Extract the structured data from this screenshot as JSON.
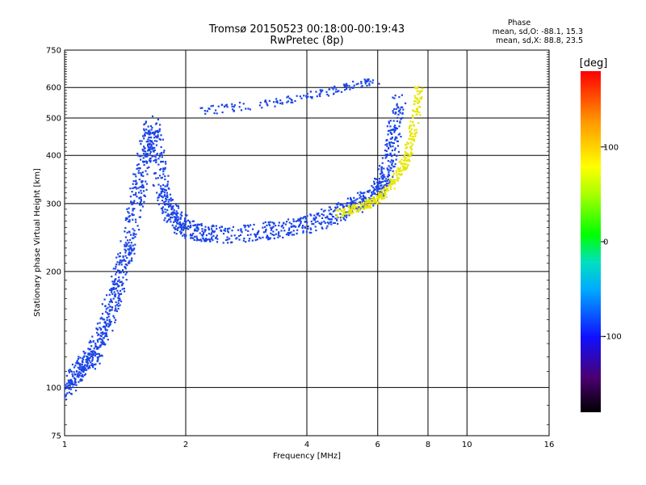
{
  "chart_data": {
    "type": "scatter",
    "title": "Tromsø 20150523 00:18:00-00:19:43",
    "subtitle": "RwPretec (8p)",
    "xlabel": "Frequency [MHz]",
    "ylabel": "Stationary phase Virtual Height [km]",
    "x_scale": "log",
    "y_scale": "log",
    "xlim": [
      1,
      16
    ],
    "ylim": [
      75,
      750
    ],
    "x_ticks": [
      1,
      2,
      4,
      6,
      8,
      10,
      16
    ],
    "y_ticks": [
      75,
      100,
      200,
      300,
      400,
      500,
      600,
      750
    ],
    "grid": true,
    "phase_box": {
      "heading": "Phase",
      "line1": "mean, sd,O: -88.1, 15.3",
      "line2": "mean, sd,X:  88.8, 23.5"
    },
    "colorbar": {
      "label": "[deg]",
      "range": [
        -180,
        180
      ],
      "ticks": [
        -100,
        0,
        100
      ],
      "colormap": "rainbow"
    },
    "colors": {
      "o_mode": "#1a44e8",
      "x_mode": "#e6e600",
      "grid": "#000000",
      "background": "#ffffff"
    },
    "o_trace": [
      {
        "x": 1.0,
        "y": 97
      },
      {
        "x": 1.05,
        "y": 105
      },
      {
        "x": 1.1,
        "y": 112
      },
      {
        "x": 1.15,
        "y": 118
      },
      {
        "x": 1.2,
        "y": 125
      },
      {
        "x": 1.25,
        "y": 140
      },
      {
        "x": 1.3,
        "y": 160
      },
      {
        "x": 1.35,
        "y": 180
      },
      {
        "x": 1.4,
        "y": 210
      },
      {
        "x": 1.45,
        "y": 240
      },
      {
        "x": 1.5,
        "y": 300
      },
      {
        "x": 1.55,
        "y": 350
      },
      {
        "x": 1.6,
        "y": 420
      },
      {
        "x": 1.65,
        "y": 480
      },
      {
        "x": 1.7,
        "y": 400
      },
      {
        "x": 1.75,
        "y": 320
      },
      {
        "x": 1.8,
        "y": 290
      },
      {
        "x": 1.9,
        "y": 270
      },
      {
        "x": 2.0,
        "y": 258
      },
      {
        "x": 2.2,
        "y": 252
      },
      {
        "x": 2.5,
        "y": 250
      },
      {
        "x": 3.0,
        "y": 252
      },
      {
        "x": 3.5,
        "y": 258
      },
      {
        "x": 4.0,
        "y": 265
      },
      {
        "x": 4.5,
        "y": 275
      },
      {
        "x": 5.0,
        "y": 290
      },
      {
        "x": 5.5,
        "y": 305
      },
      {
        "x": 6.0,
        "y": 320
      },
      {
        "x": 6.2,
        "y": 345
      },
      {
        "x": 6.4,
        "y": 390
      },
      {
        "x": 6.6,
        "y": 460
      },
      {
        "x": 6.8,
        "y": 560
      }
    ],
    "x_trace": [
      {
        "x": 4.8,
        "y": 282
      },
      {
        "x": 5.2,
        "y": 290
      },
      {
        "x": 5.6,
        "y": 298
      },
      {
        "x": 6.0,
        "y": 308
      },
      {
        "x": 6.4,
        "y": 330
      },
      {
        "x": 6.8,
        "y": 360
      },
      {
        "x": 7.1,
        "y": 400
      },
      {
        "x": 7.3,
        "y": 450
      },
      {
        "x": 7.5,
        "y": 520
      },
      {
        "x": 7.6,
        "y": 600
      }
    ],
    "upper_trace": [
      {
        "x": 2.1,
        "y": 520
      },
      {
        "x": 2.5,
        "y": 530
      },
      {
        "x": 3.0,
        "y": 540
      },
      {
        "x": 3.5,
        "y": 555
      },
      {
        "x": 4.0,
        "y": 570
      },
      {
        "x": 4.5,
        "y": 585
      },
      {
        "x": 5.0,
        "y": 600
      },
      {
        "x": 5.5,
        "y": 615
      },
      {
        "x": 6.0,
        "y": 625
      }
    ]
  }
}
